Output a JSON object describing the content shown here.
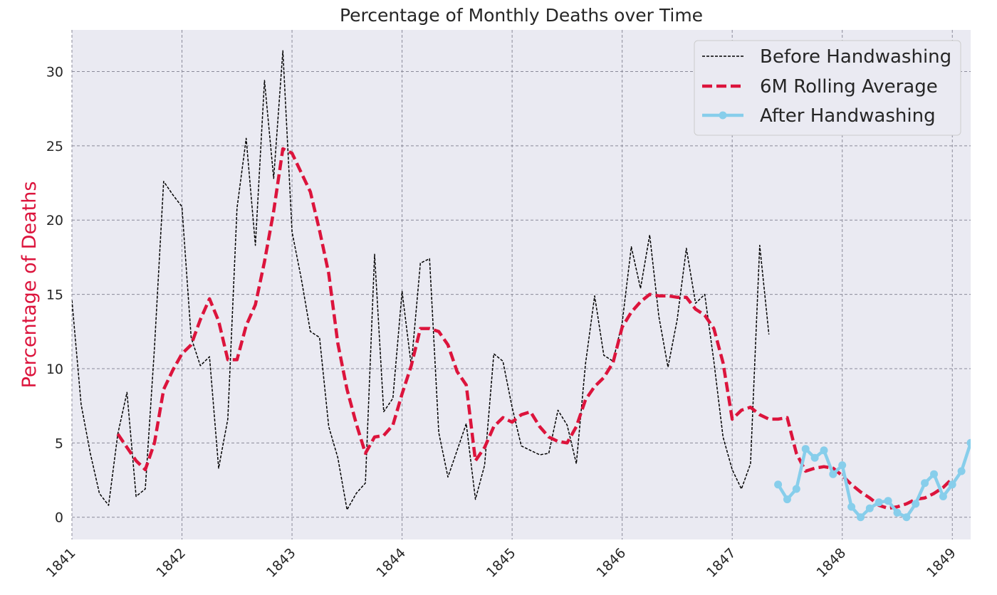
{
  "chart_data": {
    "type": "line",
    "title": "Percentage of Monthly Deaths over Time",
    "xlabel": "",
    "ylabel": "Percentage of Deaths",
    "x_ticks": [
      "1841",
      "1842",
      "1843",
      "1844",
      "1845",
      "1846",
      "1847",
      "1848",
      "1849"
    ],
    "y_ticks": [
      "0",
      "5",
      "10",
      "15",
      "20",
      "25",
      "30"
    ],
    "xlim": [
      "1841-01",
      "1849-03"
    ],
    "ylim": [
      -1.5,
      32.8
    ],
    "grid": true,
    "legend_position": "top-right",
    "series": [
      {
        "name": "Before Handwashing",
        "style": "thin black dashed",
        "color": "#000000",
        "points": [
          [
            "1841-01",
            14.6
          ],
          [
            "1841-02",
            7.6
          ],
          [
            "1841-03",
            4.3
          ],
          [
            "1841-04",
            1.6
          ],
          [
            "1841-05",
            0.8
          ],
          [
            "1841-06",
            5.6
          ],
          [
            "1841-07",
            8.4
          ],
          [
            "1841-08",
            1.4
          ],
          [
            "1841-09",
            1.9
          ],
          [
            "1841-10",
            11.4
          ],
          [
            "1841-11",
            22.6
          ],
          [
            "1841-12",
            21.7
          ],
          [
            "1842-01",
            20.9
          ],
          [
            "1842-02",
            12.1
          ],
          [
            "1842-03",
            10.2
          ],
          [
            "1842-04",
            10.8
          ],
          [
            "1842-05",
            3.3
          ],
          [
            "1842-06",
            6.6
          ],
          [
            "1842-07",
            20.8
          ],
          [
            "1842-08",
            25.5
          ],
          [
            "1842-09",
            18.3
          ],
          [
            "1842-10",
            29.4
          ],
          [
            "1842-11",
            22.8
          ],
          [
            "1842-12",
            31.4
          ],
          [
            "1843-01",
            19.2
          ],
          [
            "1843-02",
            16.1
          ],
          [
            "1843-03",
            12.5
          ],
          [
            "1843-04",
            12.1
          ],
          [
            "1843-05",
            6.1
          ],
          [
            "1843-06",
            4.0
          ],
          [
            "1843-07",
            0.5
          ],
          [
            "1843-08",
            1.6
          ],
          [
            "1843-09",
            2.3
          ],
          [
            "1843-10",
            17.7
          ],
          [
            "1843-11",
            7.1
          ],
          [
            "1843-12",
            8.0
          ],
          [
            "1844-01",
            15.2
          ],
          [
            "1844-02",
            10.2
          ],
          [
            "1844-03",
            17.1
          ],
          [
            "1844-04",
            17.4
          ],
          [
            "1844-05",
            5.7
          ],
          [
            "1844-06",
            2.7
          ],
          [
            "1844-07",
            4.5
          ],
          [
            "1844-08",
            6.3
          ],
          [
            "1844-09",
            1.2
          ],
          [
            "1844-10",
            3.5
          ],
          [
            "1844-11",
            11.0
          ],
          [
            "1844-12",
            10.5
          ],
          [
            "1845-01",
            7.4
          ],
          [
            "1845-02",
            4.8
          ],
          [
            "1845-03",
            4.5
          ],
          [
            "1845-04",
            4.2
          ],
          [
            "1845-05",
            4.3
          ],
          [
            "1845-06",
            7.2
          ],
          [
            "1845-07",
            6.2
          ],
          [
            "1845-08",
            3.6
          ],
          [
            "1845-09",
            10.3
          ],
          [
            "1845-10",
            14.9
          ],
          [
            "1845-11",
            10.9
          ],
          [
            "1845-12",
            10.5
          ],
          [
            "1846-01",
            13.1
          ],
          [
            "1846-02",
            18.2
          ],
          [
            "1846-03",
            15.4
          ],
          [
            "1846-04",
            19.0
          ],
          [
            "1846-05",
            13.5
          ],
          [
            "1846-06",
            10.1
          ],
          [
            "1846-07",
            13.3
          ],
          [
            "1846-08",
            18.1
          ],
          [
            "1846-09",
            14.4
          ],
          [
            "1846-10",
            15.0
          ],
          [
            "1846-11",
            10.5
          ],
          [
            "1846-12",
            5.4
          ],
          [
            "1847-01",
            3.2
          ],
          [
            "1847-02",
            1.9
          ],
          [
            "1847-03",
            3.6
          ],
          [
            "1847-04",
            18.3
          ],
          [
            "1847-05",
            12.3
          ]
        ]
      },
      {
        "name": "6M Rolling Average",
        "style": "thick crimson dashed",
        "color": "#dc143c",
        "points": [
          [
            "1841-06",
            5.6
          ],
          [
            "1841-07",
            4.7
          ],
          [
            "1841-08",
            3.8
          ],
          [
            "1841-09",
            3.2
          ],
          [
            "1841-10",
            5.0
          ],
          [
            "1841-11",
            8.6
          ],
          [
            "1841-12",
            9.9
          ],
          [
            "1842-01",
            11.0
          ],
          [
            "1842-02",
            11.6
          ],
          [
            "1842-03",
            13.3
          ],
          [
            "1842-04",
            14.7
          ],
          [
            "1842-05",
            13.2
          ],
          [
            "1842-06",
            10.6
          ],
          [
            "1842-07",
            10.6
          ],
          [
            "1842-08",
            12.9
          ],
          [
            "1842-09",
            14.3
          ],
          [
            "1842-10",
            17.2
          ],
          [
            "1842-11",
            20.6
          ],
          [
            "1842-12",
            24.8
          ],
          [
            "1843-01",
            24.5
          ],
          [
            "1843-02",
            23.2
          ],
          [
            "1843-03",
            21.9
          ],
          [
            "1843-04",
            19.3
          ],
          [
            "1843-05",
            16.4
          ],
          [
            "1843-06",
            11.7
          ],
          [
            "1843-07",
            8.6
          ],
          [
            "1843-08",
            6.3
          ],
          [
            "1843-09",
            4.3
          ],
          [
            "1843-10",
            5.4
          ],
          [
            "1843-11",
            5.5
          ],
          [
            "1843-12",
            6.2
          ],
          [
            "1844-01",
            8.3
          ],
          [
            "1844-02",
            10.2
          ],
          [
            "1844-03",
            12.7
          ],
          [
            "1844-04",
            12.7
          ],
          [
            "1844-05",
            12.5
          ],
          [
            "1844-06",
            11.6
          ],
          [
            "1844-07",
            9.8
          ],
          [
            "1844-08",
            8.9
          ],
          [
            "1844-09",
            3.8
          ],
          [
            "1844-10",
            4.7
          ],
          [
            "1844-11",
            6.1
          ],
          [
            "1844-12",
            6.7
          ],
          [
            "1845-01",
            6.4
          ],
          [
            "1845-02",
            6.9
          ],
          [
            "1845-03",
            7.1
          ],
          [
            "1845-04",
            6.1
          ],
          [
            "1845-05",
            5.4
          ],
          [
            "1845-06",
            5.1
          ],
          [
            "1845-07",
            5.0
          ],
          [
            "1845-08",
            6.1
          ],
          [
            "1845-09",
            7.9
          ],
          [
            "1845-10",
            8.8
          ],
          [
            "1845-11",
            9.4
          ],
          [
            "1845-12",
            10.4
          ],
          [
            "1846-01",
            12.8
          ],
          [
            "1846-02",
            13.8
          ],
          [
            "1846-03",
            14.5
          ],
          [
            "1846-04",
            15.0
          ],
          [
            "1846-05",
            14.9
          ],
          [
            "1846-06",
            14.9
          ],
          [
            "1846-07",
            14.8
          ],
          [
            "1846-08",
            14.8
          ],
          [
            "1846-09",
            14.0
          ],
          [
            "1846-10",
            13.6
          ],
          [
            "1846-11",
            12.7
          ],
          [
            "1846-12",
            10.4
          ],
          [
            "1847-01",
            6.6
          ],
          [
            "1847-02",
            7.2
          ],
          [
            "1847-03",
            7.4
          ],
          [
            "1847-04",
            6.9
          ],
          [
            "1847-05",
            6.6
          ],
          [
            "1847-06",
            6.6
          ],
          [
            "1847-07",
            6.7
          ],
          [
            "1847-08",
            4.3
          ],
          [
            "1847-09",
            3.1
          ],
          [
            "1847-10",
            3.3
          ],
          [
            "1847-11",
            3.4
          ],
          [
            "1847-12",
            3.3
          ],
          [
            "1848-01",
            2.8
          ],
          [
            "1848-02",
            2.2
          ],
          [
            "1848-03",
            1.7
          ],
          [
            "1848-04",
            1.3
          ],
          [
            "1848-05",
            0.8
          ],
          [
            "1848-06",
            0.6
          ],
          [
            "1848-07",
            0.7
          ],
          [
            "1848-08",
            0.9
          ],
          [
            "1848-09",
            1.2
          ],
          [
            "1848-10",
            1.3
          ],
          [
            "1848-11",
            1.6
          ],
          [
            "1848-12",
            2.0
          ],
          [
            "1849-01",
            2.6
          ]
        ]
      },
      {
        "name": "After Handwashing",
        "style": "thick light blue solid with circle markers",
        "color": "#87ceeb",
        "points": [
          [
            "1847-06",
            2.2
          ],
          [
            "1847-07",
            1.2
          ],
          [
            "1847-08",
            1.9
          ],
          [
            "1847-09",
            4.6
          ],
          [
            "1847-10",
            4.0
          ],
          [
            "1847-11",
            4.5
          ],
          [
            "1847-12",
            2.9
          ],
          [
            "1848-01",
            3.5
          ],
          [
            "1848-02",
            0.7
          ],
          [
            "1848-03",
            0.0
          ],
          [
            "1848-04",
            0.6
          ],
          [
            "1848-05",
            1.0
          ],
          [
            "1848-06",
            1.1
          ],
          [
            "1848-07",
            0.3
          ],
          [
            "1848-08",
            0.0
          ],
          [
            "1848-09",
            0.9
          ],
          [
            "1848-10",
            2.3
          ],
          [
            "1848-11",
            2.9
          ],
          [
            "1848-12",
            1.4
          ],
          [
            "1849-01",
            2.2
          ],
          [
            "1849-02",
            3.1
          ],
          [
            "1849-03",
            5.0
          ]
        ]
      }
    ]
  }
}
